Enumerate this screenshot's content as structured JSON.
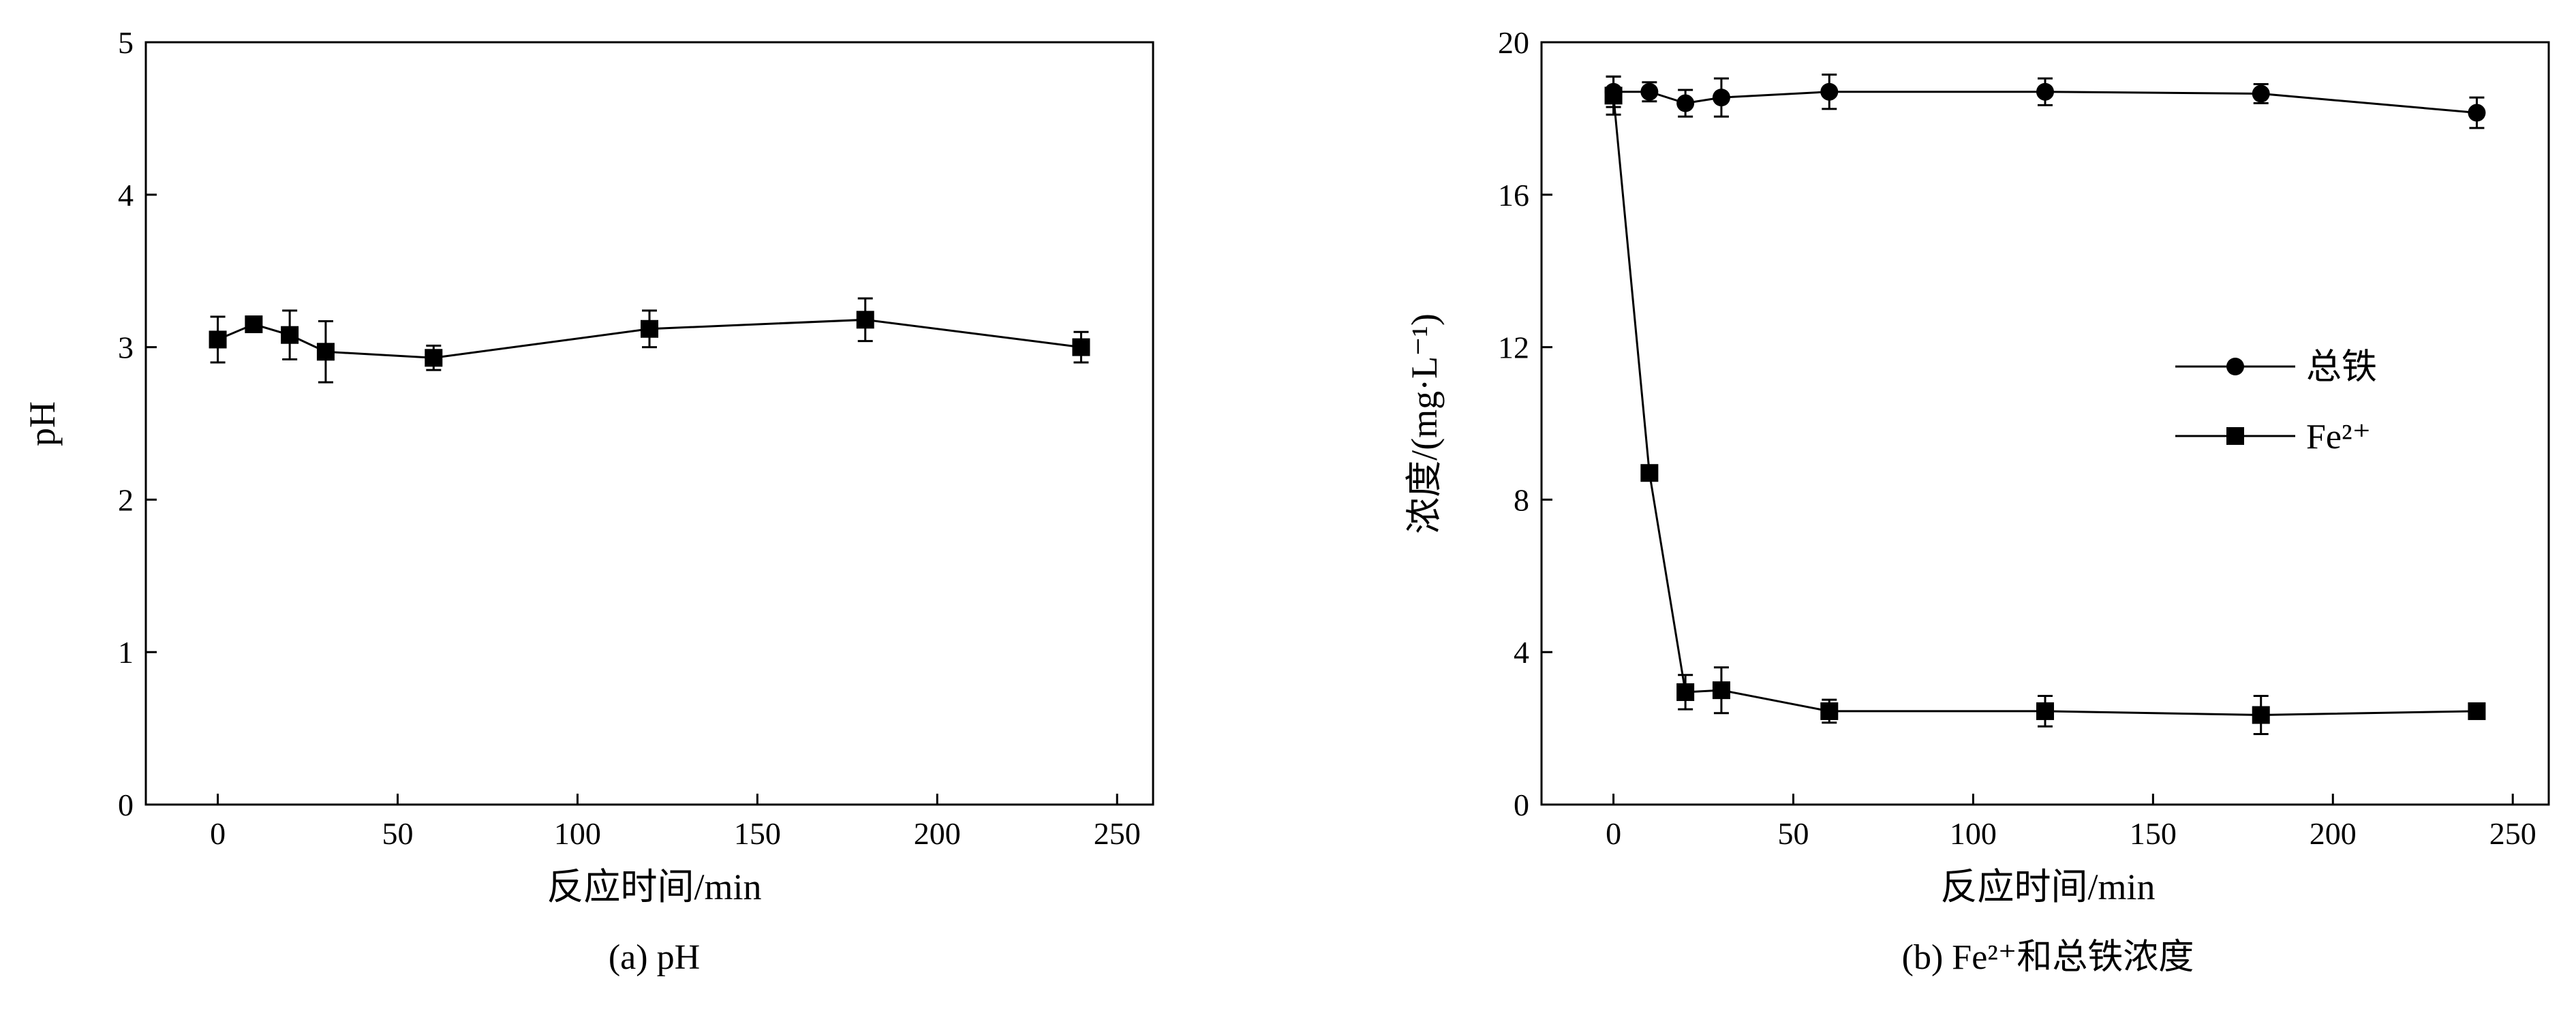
{
  "chart_data": [
    {
      "type": "line",
      "caption": "(a) pH",
      "xlabel": "反应时间/min",
      "ylabel": "pH",
      "xlim": [
        -20,
        260
      ],
      "ylim": [
        0,
        5
      ],
      "xticks": [
        0,
        50,
        100,
        150,
        200,
        250
      ],
      "yticks": [
        0,
        1,
        2,
        3,
        4,
        5
      ],
      "series": [
        {
          "marker": "square",
          "x": [
            0,
            10,
            20,
            30,
            60,
            120,
            180,
            240
          ],
          "y": [
            3.05,
            3.15,
            3.08,
            2.97,
            2.93,
            3.12,
            3.18,
            3.0
          ],
          "err": [
            0.15,
            0.05,
            0.16,
            0.2,
            0.08,
            0.12,
            0.14,
            0.1
          ]
        }
      ]
    },
    {
      "type": "line",
      "caption": "(b) Fe²⁺和总铁浓度",
      "xlabel": "反应时间/min",
      "ylabel": "浓度/(mg·L⁻¹)",
      "xlim": [
        -20,
        260
      ],
      "ylim": [
        0,
        20
      ],
      "xticks": [
        0,
        50,
        100,
        150,
        200,
        250
      ],
      "yticks": [
        0,
        4,
        8,
        12,
        16,
        20
      ],
      "legend_position": "center-right",
      "series": [
        {
          "name": "总铁",
          "marker": "circle",
          "x": [
            0,
            10,
            20,
            30,
            60,
            120,
            180,
            240
          ],
          "y": [
            18.7,
            18.7,
            18.4,
            18.55,
            18.7,
            18.7,
            18.65,
            18.15
          ],
          "err": [
            0.4,
            0.25,
            0.35,
            0.5,
            0.45,
            0.35,
            0.25,
            0.4
          ]
        },
        {
          "name": "Fe²⁺",
          "marker": "square",
          "x": [
            0,
            10,
            20,
            30,
            60,
            120,
            180,
            240
          ],
          "y": [
            18.6,
            8.7,
            2.95,
            3.0,
            2.45,
            2.45,
            2.35,
            2.45
          ],
          "err": [
            0.5,
            0.1,
            0.45,
            0.6,
            0.3,
            0.4,
            0.5,
            0.15
          ]
        }
      ]
    }
  ]
}
